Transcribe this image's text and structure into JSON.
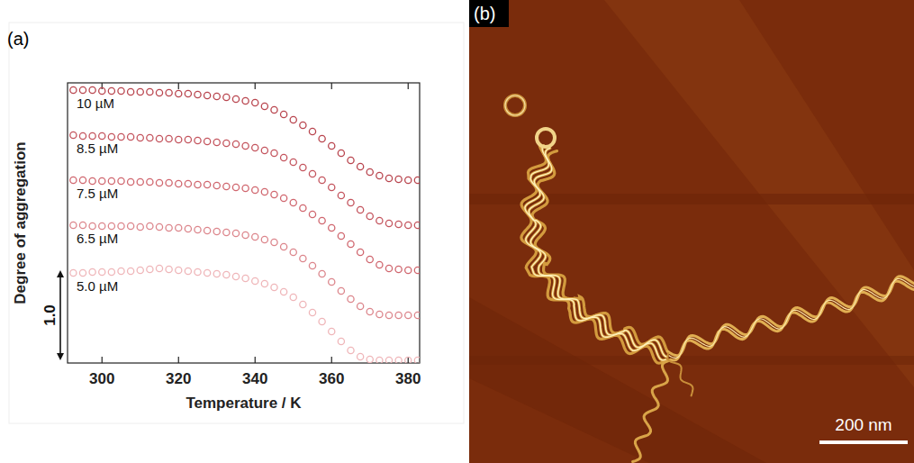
{
  "chart_data": {
    "type": "scatter",
    "panel_label": "(a)",
    "xlabel": "Temperature / K",
    "ylabel": "Degree of aggregation",
    "xlim": [
      291,
      383
    ],
    "xticks": [
      300,
      320,
      340,
      360,
      380
    ],
    "ylim": [
      -0.03,
      3.08
    ],
    "tick_labels": "x",
    "marker": "circle",
    "scale_bar": {
      "value": 1.0,
      "label": "1.0"
    },
    "x": [
      292.5,
      295,
      297.5,
      300,
      302.5,
      305,
      307.5,
      310,
      312.5,
      315,
      317.5,
      320,
      322.5,
      325,
      327.5,
      330,
      332.5,
      335,
      337.5,
      340,
      342.5,
      345,
      347.5,
      350,
      352.5,
      355,
      357.5,
      360,
      362.5,
      365,
      367.5,
      370,
      372.5,
      375,
      377.5,
      380,
      382.5
    ],
    "series": [
      {
        "name": "10 µM",
        "color": "#b9464f",
        "values": [
          3.0,
          3.0,
          3.0,
          2.99,
          2.99,
          2.99,
          2.98,
          2.98,
          2.98,
          2.97,
          2.97,
          2.96,
          2.96,
          2.95,
          2.94,
          2.93,
          2.92,
          2.9,
          2.88,
          2.86,
          2.82,
          2.78,
          2.73,
          2.67,
          2.61,
          2.54,
          2.46,
          2.38,
          2.3,
          2.22,
          2.15,
          2.09,
          2.05,
          2.02,
          2.01,
          2.0,
          2.0
        ]
      },
      {
        "name": "8.5 µM",
        "color": "#c4555e",
        "values": [
          2.5,
          2.49,
          2.49,
          2.49,
          2.48,
          2.48,
          2.48,
          2.47,
          2.47,
          2.46,
          2.46,
          2.45,
          2.45,
          2.44,
          2.43,
          2.42,
          2.41,
          2.4,
          2.38,
          2.36,
          2.33,
          2.3,
          2.25,
          2.2,
          2.14,
          2.07,
          2.0,
          1.92,
          1.83,
          1.75,
          1.67,
          1.6,
          1.55,
          1.52,
          1.51,
          1.5,
          1.5
        ]
      },
      {
        "name": "7.5 µM",
        "color": "#d0676f",
        "values": [
          2.0,
          2.0,
          1.99,
          1.99,
          1.99,
          1.99,
          1.98,
          1.98,
          1.98,
          1.97,
          1.97,
          1.96,
          1.96,
          1.95,
          1.95,
          1.94,
          1.93,
          1.92,
          1.91,
          1.89,
          1.87,
          1.84,
          1.8,
          1.75,
          1.69,
          1.62,
          1.55,
          1.47,
          1.38,
          1.29,
          1.2,
          1.12,
          1.06,
          1.02,
          1.01,
          1.0,
          1.0
        ]
      },
      {
        "name": "6.5 µM",
        "color": "#dc868c",
        "values": [
          1.5,
          1.5,
          1.49,
          1.49,
          1.49,
          1.49,
          1.49,
          1.48,
          1.49,
          1.48,
          1.47,
          1.47,
          1.46,
          1.45,
          1.44,
          1.43,
          1.42,
          1.41,
          1.39,
          1.37,
          1.34,
          1.31,
          1.26,
          1.2,
          1.13,
          1.05,
          0.96,
          0.87,
          0.77,
          0.68,
          0.6,
          0.54,
          0.51,
          0.5,
          0.5,
          0.5,
          0.5
        ]
      },
      {
        "name": "5.0 µM",
        "color": "#efb6b9",
        "values": [
          0.97,
          0.97,
          0.98,
          0.98,
          0.98,
          0.99,
          0.99,
          1.0,
          1.01,
          1.02,
          1.01,
          1.0,
          0.99,
          0.98,
          0.97,
          0.96,
          0.95,
          0.93,
          0.91,
          0.88,
          0.85,
          0.81,
          0.76,
          0.7,
          0.62,
          0.53,
          0.43,
          0.32,
          0.21,
          0.11,
          0.04,
          0.01,
          0.0,
          0.0,
          0.0,
          0.0,
          0.0
        ]
      }
    ]
  },
  "panel_b": {
    "label": "(b)",
    "scale_bar_label": "200 nm"
  }
}
